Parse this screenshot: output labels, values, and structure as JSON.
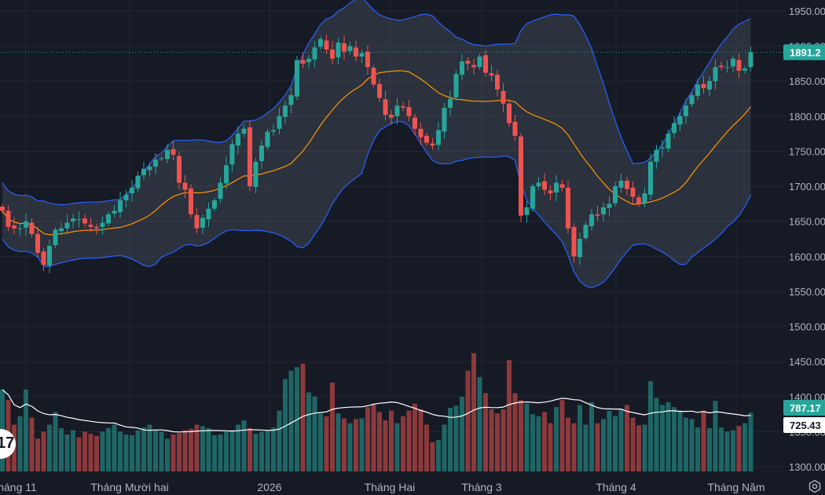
{
  "chart_data": {
    "type": "candlestick",
    "y_axis": {
      "ticks": [
        1950,
        1900,
        1850,
        1800,
        1750,
        1700,
        1650,
        1600,
        1550,
        1500,
        1450,
        1400,
        1350,
        1300
      ],
      "tick_labels": [
        "1950.00",
        "1900.00",
        "1850.00",
        "1800.00",
        "1750.00",
        "1700.00",
        "1650.00",
        "1600.00",
        "1550.00",
        "1500.00",
        "1450.00",
        "1400.00",
        "1350.00",
        "1300.00"
      ],
      "range": [
        1290,
        1965
      ]
    },
    "x_axis": {
      "labels": [
        "háng 11",
        "Tháng Mười hai",
        "2026",
        "Tháng Hai",
        "Tháng 3",
        "Tháng 4",
        "Tháng Năm"
      ]
    },
    "last_price_label": "1891.2",
    "volume_label": "787.17",
    "volume_ma_label": "725.43",
    "colors": {
      "up": "#26a69a",
      "down": "#ef5350",
      "band_line": "#2962ff",
      "ma": "#ff9800",
      "vol_ma": "#ffffff",
      "background": "#161a25"
    },
    "closes": [
      1665,
      1642,
      1640,
      1640,
      1650,
      1632,
      1605,
      1588,
      1615,
      1638,
      1640,
      1648,
      1654,
      1653,
      1647,
      1642,
      1640,
      1648,
      1660,
      1665,
      1680,
      1688,
      1698,
      1715,
      1725,
      1728,
      1738,
      1740,
      1752,
      1745,
      1705,
      1695,
      1660,
      1640,
      1655,
      1668,
      1680,
      1705,
      1730,
      1760,
      1775,
      1782,
      1700,
      1735,
      1758,
      1778,
      1780,
      1800,
      1815,
      1830,
      1880,
      1875,
      1882,
      1898,
      1910,
      1895,
      1882,
      1905,
      1892,
      1900,
      1885,
      1890,
      1870,
      1845,
      1826,
      1802,
      1798,
      1815,
      1812,
      1800,
      1782,
      1770,
      1762,
      1758,
      1780,
      1812,
      1825,
      1860,
      1878,
      1875,
      1870,
      1885,
      1862,
      1858,
      1838,
      1818,
      1790,
      1772,
      1658,
      1670,
      1700,
      1705,
      1695,
      1690,
      1705,
      1698,
      1640,
      1600,
      1625,
      1645,
      1660,
      1658,
      1670,
      1675,
      1700,
      1708,
      1696,
      1685,
      1675,
      1690,
      1735,
      1752,
      1755,
      1775,
      1790,
      1800,
      1815,
      1830,
      1845,
      1840,
      1850,
      1870,
      1870,
      1870,
      1882,
      1865,
      1868,
      1891.2
    ],
    "volumes": [
      1410,
      1395,
      1360,
      1372,
      1410,
      1370,
      1340,
      1350,
      1360,
      1378,
      1355,
      1346,
      1352,
      1342,
      1350,
      1347,
      1344,
      1350,
      1355,
      1360,
      1350,
      1346,
      1345,
      1352,
      1356,
      1360,
      1352,
      1350,
      1340,
      1346,
      1348,
      1352,
      1354,
      1360,
      1358,
      1355,
      1345,
      1346,
      1350,
      1352,
      1360,
      1366,
      1355,
      1347,
      1350,
      1352,
      1356,
      1380,
      1425,
      1437,
      1442,
      1447,
      1406,
      1400,
      1376,
      1372,
      1420,
      1376,
      1369,
      1362,
      1368,
      1369,
      1385,
      1390,
      1378,
      1366,
      1380,
      1362,
      1372,
      1380,
      1390,
      1382,
      1360,
      1335,
      1338,
      1360,
      1384,
      1387,
      1400,
      1437,
      1462,
      1428,
      1405,
      1382,
      1376,
      1382,
      1452,
      1405,
      1395,
      1390,
      1375,
      1372,
      1378,
      1362,
      1385,
      1395,
      1370,
      1362,
      1388,
      1360,
      1392,
      1362,
      1368,
      1380,
      1372,
      1382,
      1388,
      1370,
      1359,
      1360,
      1422,
      1398,
      1388,
      1392,
      1385,
      1380,
      1370,
      1368,
      1356,
      1380,
      1355,
      1394,
      1356,
      1350,
      1352,
      1358,
      1362,
      1377
    ],
    "volume_labels": [
      "787.17",
      "725.43"
    ]
  }
}
